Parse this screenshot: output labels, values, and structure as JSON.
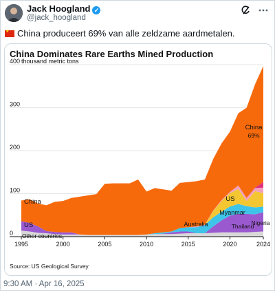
{
  "tweet": {
    "author_name": "Jack Hoogland",
    "handle": "@jack_hoogland",
    "text": "China produceert 69% van alle zeldzame aardmetalen.",
    "timestamp": "9:30 AM · Apr 16, 2025",
    "icons": {
      "verified": "verified-badge-icon",
      "grok": "grok-icon",
      "more": "more-icon",
      "flag": "china-flag-icon"
    }
  },
  "chart_data": {
    "type": "area",
    "title": "China Dominates Rare Earths Mined Production",
    "ylabel": "thousand metric tons",
    "source": "Source: US Geological Survey",
    "ylim": [
      0,
      400
    ],
    "yticks": [
      0,
      100,
      200,
      300,
      400
    ],
    "xticks": [
      1995,
      2000,
      2005,
      2010,
      2015,
      2020,
      2024
    ],
    "x": [
      1995,
      1996,
      1997,
      1998,
      1999,
      2000,
      2001,
      2002,
      2003,
      2004,
      2005,
      2006,
      2007,
      2008,
      2009,
      2010,
      2011,
      2012,
      2013,
      2014,
      2015,
      2016,
      2017,
      2018,
      2019,
      2020,
      2021,
      2022,
      2023,
      2024
    ],
    "series": [
      {
        "name": "Other countries",
        "color": "#d8d8d8",
        "values": [
          14,
          12,
          9,
          8,
          6,
          5,
          5,
          5,
          4,
          4,
          4,
          4,
          4,
          4,
          4,
          5,
          6,
          6,
          6,
          7,
          8,
          8,
          8,
          9,
          10,
          10,
          10,
          10,
          11,
          12
        ]
      },
      {
        "name": "US",
        "color": "#9b59d0",
        "values": [
          22,
          20,
          15,
          5,
          5,
          5,
          5,
          0,
          0,
          0,
          0,
          0,
          0,
          0,
          0,
          0,
          0,
          1,
          4,
          5,
          4,
          0,
          0,
          15,
          28,
          39,
          43,
          43,
          41,
          45
        ]
      },
      {
        "name": "Australia",
        "color": "#3ec4e8",
        "values": [
          0,
          0,
          0,
          0,
          0,
          0,
          0,
          0,
          0,
          0,
          0,
          0,
          0,
          0,
          0,
          0,
          2,
          3,
          2,
          8,
          10,
          14,
          19,
          21,
          20,
          21,
          23,
          18,
          16,
          13
        ]
      },
      {
        "name": "Myanmar",
        "color": "#f4c632",
        "values": [
          0,
          0,
          0,
          0,
          0,
          0,
          0,
          0,
          0,
          0,
          0,
          0,
          0,
          0,
          0,
          0,
          0,
          0,
          0,
          0,
          0,
          0,
          0,
          15,
          25,
          31,
          35,
          12,
          38,
          31
        ]
      },
      {
        "name": "Thailand",
        "color": "#f2a0c0",
        "values": [
          0,
          0,
          0,
          0,
          0,
          0,
          0,
          0,
          0,
          0,
          0,
          0,
          0,
          0,
          0,
          0,
          0,
          0,
          0,
          0,
          0,
          2,
          1,
          1,
          2,
          3,
          8,
          7,
          7,
          13
        ]
      },
      {
        "name": "Nigeria",
        "color": "#e0337a",
        "values": [
          0,
          0,
          0,
          0,
          0,
          0,
          0,
          0,
          0,
          0,
          0,
          0,
          0,
          0,
          0,
          0,
          0,
          0,
          0,
          0,
          0,
          0,
          0,
          0,
          0,
          0,
          0,
          0,
          1,
          13
        ]
      },
      {
        "name": "China",
        "color": "#f76a0c",
        "values": [
          48,
          55,
          53,
          60,
          70,
          73,
          80,
          88,
          92,
          95,
          119,
          120,
          120,
          120,
          129,
          100,
          105,
          100,
          95,
          105,
          105,
          105,
          105,
          120,
          132,
          140,
          168,
          210,
          240,
          270
        ]
      }
    ],
    "labels": {
      "china": "China",
      "china_share": "69%",
      "us": "US",
      "australia": "Australia",
      "myanmar": "Myanmar",
      "thailand": "Thailand",
      "nigeria": "Nigeria",
      "other": "Other countries"
    }
  }
}
